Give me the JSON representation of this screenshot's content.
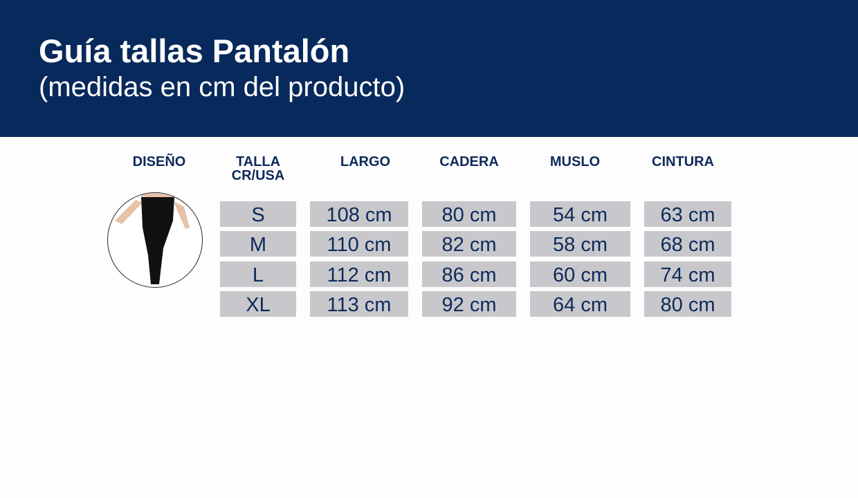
{
  "header": {
    "title": "Guía tallas Pantalón",
    "subtitle": "(medidas en cm del producto)"
  },
  "table": {
    "headers": [
      "DISEÑO",
      "TALLA\nCR/USA",
      "LARGO",
      "CADERA",
      "MUSLO",
      "CINTURA"
    ],
    "rows": [
      [
        "S",
        "108 cm",
        "80 cm",
        "54 cm",
        "63 cm"
      ],
      [
        "M",
        "110 cm",
        "82 cm",
        "58 cm",
        "68 cm"
      ],
      [
        "L",
        "112 cm",
        "86 cm",
        "60 cm",
        "74 cm"
      ],
      [
        "XL",
        "113 cm",
        "92 cm",
        "64 cm",
        "80 cm"
      ]
    ]
  },
  "colors": {
    "navy": "#08295b",
    "cell": "#c8c8cc"
  }
}
